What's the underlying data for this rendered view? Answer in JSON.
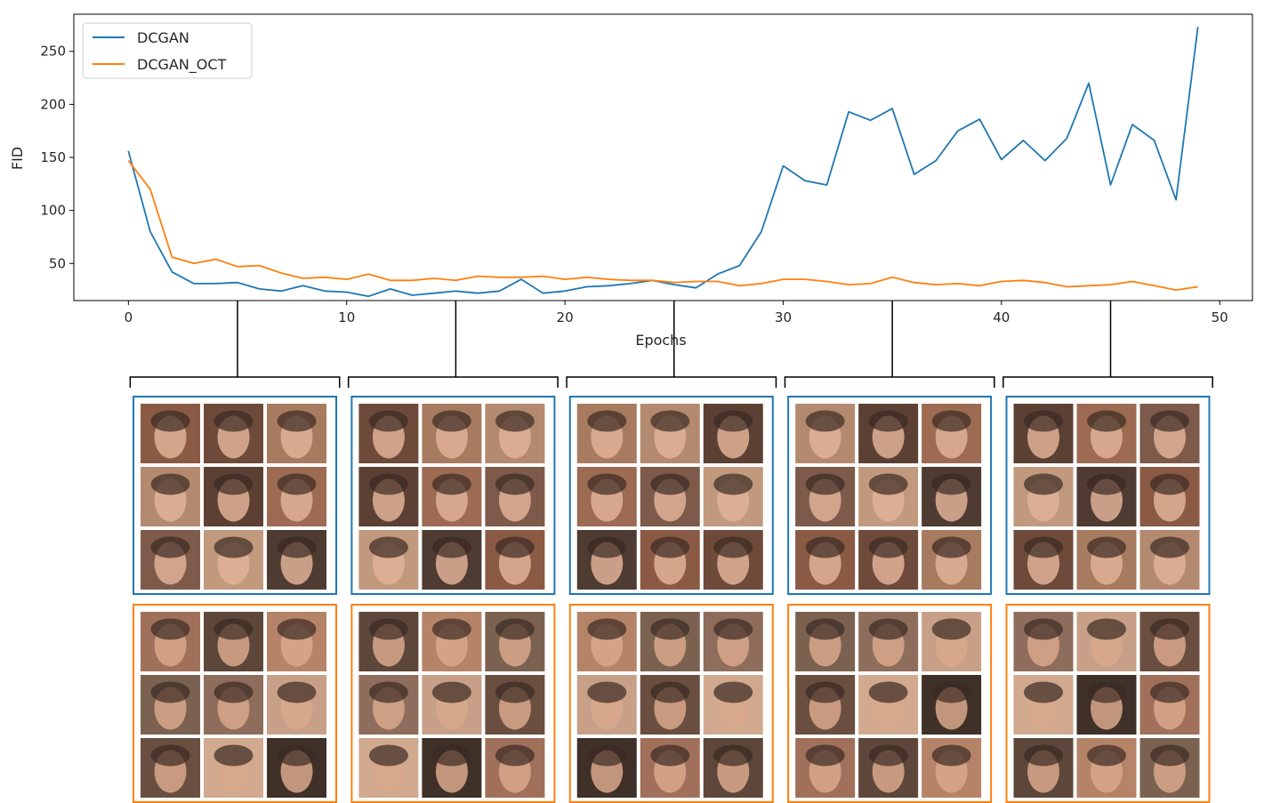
{
  "chart_data": {
    "type": "line",
    "xlabel": "Epochs",
    "ylabel": "FID",
    "xlim": [
      -2.5,
      51.5
    ],
    "ylim": [
      15,
      285
    ],
    "xticks": [
      0,
      10,
      20,
      30,
      40,
      50
    ],
    "yticks": [
      50,
      100,
      150,
      200,
      250
    ],
    "grid": false,
    "legend_position": "top-left",
    "x": [
      0,
      1,
      2,
      3,
      4,
      5,
      6,
      7,
      8,
      9,
      10,
      11,
      12,
      13,
      14,
      15,
      16,
      17,
      18,
      19,
      20,
      21,
      22,
      23,
      24,
      25,
      26,
      27,
      28,
      29,
      30,
      31,
      32,
      33,
      34,
      35,
      36,
      37,
      38,
      39,
      40,
      41,
      42,
      43,
      44,
      45,
      46,
      47,
      48,
      49
    ],
    "series": [
      {
        "name": "DCGAN",
        "color": "#1f77b4",
        "values": [
          156,
          80,
          42,
          31,
          31,
          32,
          26,
          24,
          29,
          24,
          23,
          19,
          26,
          20,
          22,
          24,
          22,
          24,
          35,
          22,
          24,
          28,
          29,
          31,
          34,
          30,
          27,
          40,
          48,
          80,
          142,
          128,
          124,
          193,
          185,
          196,
          134,
          147,
          175,
          186,
          148,
          166,
          147,
          168,
          220,
          124,
          181,
          166,
          110,
          273
        ]
      },
      {
        "name": "DCGAN_OCT",
        "color": "#ff7f0e",
        "values": [
          147,
          120,
          56,
          50,
          54,
          47,
          48,
          41,
          36,
          37,
          35,
          40,
          34,
          34,
          36,
          34,
          38,
          37,
          37,
          38,
          35,
          37,
          35,
          34,
          34,
          32,
          33,
          33,
          29,
          31,
          35,
          35,
          33,
          30,
          31,
          37,
          32,
          30,
          31,
          29,
          33,
          34,
          32,
          28,
          29,
          30,
          33,
          29,
          25,
          28
        ]
      }
    ],
    "sample_groups": [
      {
        "epoch": 5,
        "target_epochs": [
          0,
          10
        ]
      },
      {
        "epoch": 15,
        "target_epochs": [
          10,
          20
        ]
      },
      {
        "epoch": 25,
        "target_epochs": [
          20,
          30
        ]
      },
      {
        "epoch": 35,
        "target_epochs": [
          30,
          40
        ]
      },
      {
        "epoch": 45,
        "target_epochs": [
          40,
          50
        ]
      }
    ]
  }
}
